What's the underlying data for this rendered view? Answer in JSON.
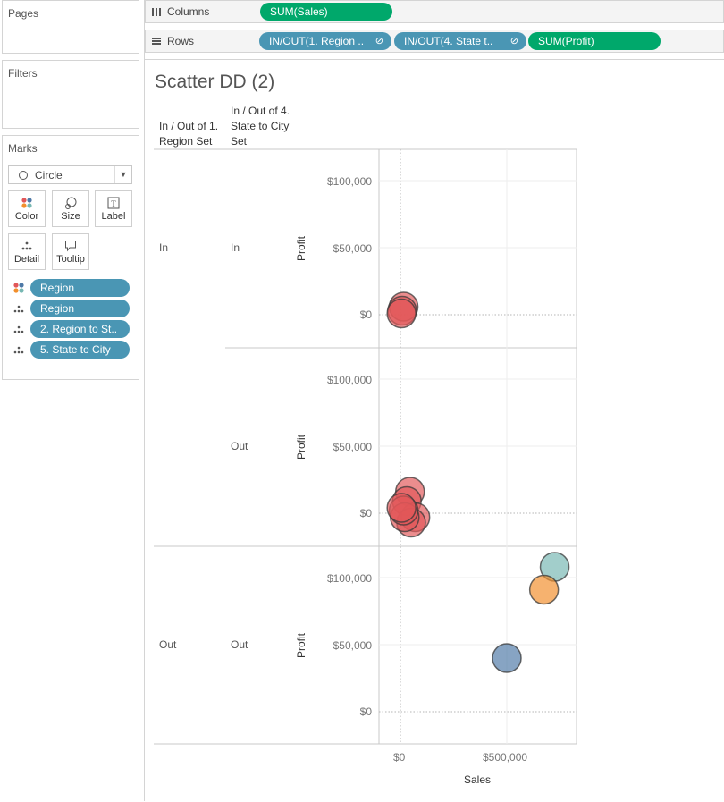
{
  "left_panel": {
    "pages_title": "Pages",
    "filters_title": "Filters",
    "marks_title": "Marks",
    "mark_type": "Circle",
    "mark_buttons": [
      {
        "label": "Color",
        "icon": "color-dots-icon"
      },
      {
        "label": "Size",
        "icon": "size-icon"
      },
      {
        "label": "Label",
        "icon": "label-icon"
      },
      {
        "label": "Detail",
        "icon": "detail-icon"
      },
      {
        "label": "Tooltip",
        "icon": "tooltip-icon"
      }
    ],
    "mark_fields": [
      {
        "label": "Region",
        "icon": "color-dots-icon"
      },
      {
        "label": "Region",
        "icon": "detail-icon"
      },
      {
        "label": "2. Region to St..",
        "icon": "detail-icon"
      },
      {
        "label": "5. State to City",
        "icon": "detail-icon"
      }
    ]
  },
  "shelves": {
    "columns_label": "Columns",
    "rows_label": "Rows",
    "columns_pills": [
      "SUM(Sales)"
    ],
    "rows_pills": [
      "IN/OUT(1. Region ..",
      "IN/OUT(4. State t..",
      "SUM(Profit)"
    ]
  },
  "view": {
    "title": "Scatter DD (2)",
    "col_header_1": [
      "In / Out of 1.",
      "Region Set"
    ],
    "col_header_2": [
      "In / Out of 4.",
      "State to City",
      "Set"
    ],
    "rows": [
      {
        "set1": "In",
        "set2": "In"
      },
      {
        "set1": "",
        "set2": "Out"
      },
      {
        "set1": "Out",
        "set2": "Out"
      }
    ],
    "y_axis_title": "Profit",
    "x_axis_title": "Sales",
    "y_ticks": [
      "$100,000",
      "$50,000",
      "$0"
    ],
    "x_ticks": [
      "$0",
      "$500,000"
    ]
  },
  "colors": {
    "red": "#e15759",
    "teal": "#76b7b2",
    "orange": "#f28e2b",
    "blue": "#4e79a7",
    "pill_green": "#00a86b",
    "pill_blue": "#4a96b4"
  },
  "chart_data": {
    "type": "scatter",
    "xlabel": "Sales",
    "ylabel": "Profit",
    "xlim": [
      -100000,
      830000
    ],
    "ylim": [
      -30000,
      125000
    ],
    "panes": [
      {
        "row": "In / In",
        "points": [
          {
            "x": 15000,
            "y": 6000,
            "color": "red"
          },
          {
            "x": 8000,
            "y": 3000,
            "color": "red"
          },
          {
            "x": 5000,
            "y": 1000,
            "color": "red"
          }
        ]
      },
      {
        "row": "In / Out",
        "points": [
          {
            "x": 45000,
            "y": 16000,
            "color": "red"
          },
          {
            "x": 30000,
            "y": 9000,
            "color": "red"
          },
          {
            "x": 70000,
            "y": -3000,
            "color": "red"
          },
          {
            "x": 50000,
            "y": -7000,
            "color": "red"
          },
          {
            "x": 20000,
            "y": -3000,
            "color": "red"
          },
          {
            "x": 15000,
            "y": 2000,
            "color": "red"
          },
          {
            "x": 5000,
            "y": 4000,
            "color": "red"
          }
        ]
      },
      {
        "row": "Out / Out",
        "points": [
          {
            "x": 725000,
            "y": 108000,
            "color": "teal"
          },
          {
            "x": 675000,
            "y": 91000,
            "color": "orange"
          },
          {
            "x": 500000,
            "y": 40000,
            "color": "blue"
          }
        ]
      }
    ]
  }
}
